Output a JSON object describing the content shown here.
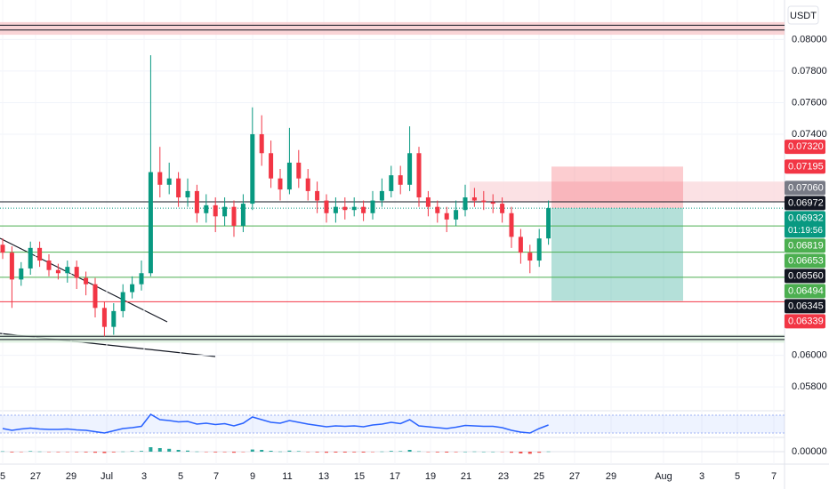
{
  "chart_data": {
    "type": "candlestick",
    "currency": "USDT",
    "open": [
      0.067,
      0.0665,
      0.0648,
      0.0655,
      0.0668,
      0.066,
      0.0654,
      0.0652,
      0.0656,
      0.0649,
      0.0645,
      0.063,
      0.0618,
      0.0628,
      0.064,
      0.0645,
      0.0652,
      0.0716,
      0.0708,
      0.0712,
      0.07,
      0.0704,
      0.069,
      0.0695,
      0.0688,
      0.0694,
      0.0682,
      0.0696,
      0.074,
      0.0728,
      0.0712,
      0.0705,
      0.0722,
      0.0712,
      0.0704,
      0.0698,
      0.069,
      0.0694,
      0.0692,
      0.0694,
      0.069,
      0.0698,
      0.0704,
      0.0714,
      0.0708,
      0.0728,
      0.07,
      0.0694,
      0.069,
      0.0686,
      0.0692,
      0.07,
      0.0698,
      0.0697,
      0.0696,
      0.069,
      0.0675,
      0.0665,
      0.066,
      0.0674
    ],
    "high": [
      0.0674,
      0.0669,
      0.0659,
      0.0672,
      0.0672,
      0.0664,
      0.0658,
      0.066,
      0.066,
      0.0653,
      0.0649,
      0.0634,
      0.0633,
      0.0645,
      0.065,
      0.066,
      0.079,
      0.0732,
      0.0722,
      0.0716,
      0.0712,
      0.0708,
      0.0702,
      0.07,
      0.07,
      0.0698,
      0.0702,
      0.0757,
      0.0752,
      0.0736,
      0.0718,
      0.0744,
      0.073,
      0.0718,
      0.071,
      0.0702,
      0.07,
      0.07,
      0.07,
      0.0698,
      0.0704,
      0.0712,
      0.072,
      0.072,
      0.0745,
      0.0732,
      0.0704,
      0.0698,
      0.0694,
      0.0698,
      0.0708,
      0.0706,
      0.0704,
      0.0702,
      0.07,
      0.0694,
      0.068,
      0.067,
      0.068,
      0.0698
    ],
    "low": [
      0.0661,
      0.063,
      0.0644,
      0.0651,
      0.0656,
      0.065,
      0.0648,
      0.0646,
      0.0642,
      0.0638,
      0.0624,
      0.0612,
      0.0613,
      0.0624,
      0.0636,
      0.0641,
      0.065,
      0.07,
      0.0702,
      0.0694,
      0.0694,
      0.0684,
      0.0684,
      0.0678,
      0.0682,
      0.0675,
      0.0678,
      0.0692,
      0.072,
      0.0706,
      0.0698,
      0.0702,
      0.0706,
      0.0698,
      0.069,
      0.0684,
      0.0684,
      0.0686,
      0.0688,
      0.0685,
      0.0686,
      0.0694,
      0.07,
      0.0702,
      0.0704,
      0.0694,
      0.0688,
      0.0684,
      0.0678,
      0.0682,
      0.0688,
      0.0694,
      0.0692,
      0.069,
      0.0684,
      0.0668,
      0.0658,
      0.0652,
      0.0656,
      0.067
    ],
    "close": [
      0.0665,
      0.0648,
      0.0655,
      0.0668,
      0.066,
      0.0654,
      0.0652,
      0.0656,
      0.0649,
      0.0645,
      0.063,
      0.0618,
      0.0628,
      0.064,
      0.0645,
      0.0652,
      0.0716,
      0.0708,
      0.0712,
      0.07,
      0.0704,
      0.069,
      0.0695,
      0.0688,
      0.0694,
      0.0682,
      0.0696,
      0.074,
      0.0728,
      0.0712,
      0.0705,
      0.0722,
      0.0712,
      0.0704,
      0.0698,
      0.069,
      0.0694,
      0.0692,
      0.0694,
      0.069,
      0.0698,
      0.0704,
      0.0714,
      0.0708,
      0.0728,
      0.07,
      0.0694,
      0.069,
      0.0686,
      0.0692,
      0.07,
      0.0698,
      0.0697,
      0.0696,
      0.069,
      0.0675,
      0.0665,
      0.066,
      0.0674,
      0.06932
    ],
    "up_color": "#089981",
    "down_color": "#f23645",
    "ylim": [
      0.0566,
      0.0825
    ],
    "yticks": [
      {
        "value": 0.08,
        "label": "0.08000"
      },
      {
        "value": 0.078,
        "label": "0.07800"
      },
      {
        "value": 0.076,
        "label": "0.07600"
      },
      {
        "value": 0.074,
        "label": "0.07400"
      },
      {
        "value": 0.06,
        "label": "0.06000"
      },
      {
        "value": 0.058,
        "label": "0.05800"
      }
    ],
    "xticks": [
      "5",
      "27",
      "29",
      "Jul",
      "3",
      "5",
      "7",
      "9",
      "11",
      "13",
      "15",
      "17",
      "19",
      "21",
      "23",
      "25",
      "27",
      "29",
      "Aug",
      "3",
      "5",
      "7"
    ],
    "price_labels": [
      {
        "value": 0.0732,
        "label": "0.07320",
        "color": "#f23645"
      },
      {
        "value": 0.07195,
        "label": "0.07195",
        "color": "#f23645"
      },
      {
        "value": 0.0706,
        "label": "0.07060",
        "color": "#787b86"
      },
      {
        "value": 0.06972,
        "label": "0.06972",
        "color": "#131722",
        "line": true
      },
      {
        "value": 0.06932,
        "label": "0.06932",
        "color": "#089981",
        "current": true
      },
      {
        "value": 0.06819,
        "label": "0.06819",
        "color": "#4caf50",
        "line": true
      },
      {
        "value": 0.06653,
        "label": "0.06653",
        "color": "#4caf50",
        "line": true
      },
      {
        "value": 0.0656,
        "label": "0.06560",
        "color": "#131722"
      },
      {
        "value": 0.06494,
        "label": "0.06494",
        "color": "#4caf50",
        "line": true
      },
      {
        "value": 0.06345,
        "label": "0.06345",
        "color": "#131722"
      },
      {
        "value": 0.06339,
        "label": "0.06339",
        "color": "#f23645",
        "line": true
      }
    ],
    "countdown": "01:19:56",
    "zones": [
      {
        "from": 0.0803,
        "to": 0.0811,
        "color": "#f7c9cc",
        "lines": [
          0.0809,
          0.0806
        ],
        "full": true
      },
      {
        "from": 0.0697,
        "to": 0.071,
        "color": "#fadadd",
        "lines": [],
        "full": false
      },
      {
        "from": 0.0608,
        "to": 0.0613,
        "color": "#d9efdc",
        "lines": [
          0.0612,
          0.061
        ],
        "full": true
      }
    ],
    "position": {
      "stop": 0.07195,
      "entry": 0.06932,
      "target": 0.06345
    },
    "rsi": {
      "values": [
        40,
        36,
        39,
        41,
        39,
        38,
        38,
        39,
        37,
        36,
        33,
        30,
        35,
        40,
        42,
        45,
        72,
        60,
        58,
        55,
        56,
        50,
        52,
        49,
        51,
        46,
        52,
        66,
        60,
        54,
        52,
        58,
        54,
        50,
        47,
        44,
        46,
        45,
        46,
        44,
        48,
        50,
        54,
        51,
        60,
        46,
        44,
        42,
        40,
        43,
        47,
        46,
        45,
        45,
        42,
        36,
        32,
        30,
        40,
        48
      ],
      "ylim": [
        20,
        80
      ],
      "band": [
        30,
        70
      ],
      "color": "#2962ff"
    },
    "macd": {
      "values": [
        2e-05,
        -4e-05,
        -2e-05,
        3e-05,
        1e-05,
        -2e-05,
        -3e-05,
        -1e-05,
        -3e-05,
        -4e-05,
        -6e-05,
        -8e-05,
        -4e-05,
        1e-05,
        3e-05,
        4e-05,
        0.00025,
        0.0002,
        0.00016,
        0.0001,
        6e-05,
        1e-05,
        -2e-05,
        -4e-05,
        -3e-05,
        -6e-05,
        -2e-05,
        0.00012,
        0.0001,
        5e-05,
        1e-05,
        6e-05,
        3e-05,
        -1e-05,
        -4e-05,
        -6e-05,
        -5e-05,
        -5e-05,
        -4e-05,
        -5e-05,
        -2e-05,
        1e-05,
        4e-05,
        3e-05,
        0.0001,
        2e-05,
        -2e-05,
        -4e-05,
        -5e-05,
        -3e-05,
        0,
        1e-05,
        0,
        0,
        -2e-05,
        -6e-05,
        -0.0001,
        -0.00012,
        -6e-05,
        1e-05
      ],
      "ylim": [
        -0.0006,
        0.0006
      ],
      "yticks": [
        {
          "value": 0,
          "label": "0.00000"
        }
      ],
      "up_color": "#26a69a",
      "down_color": "#ef5350"
    }
  }
}
